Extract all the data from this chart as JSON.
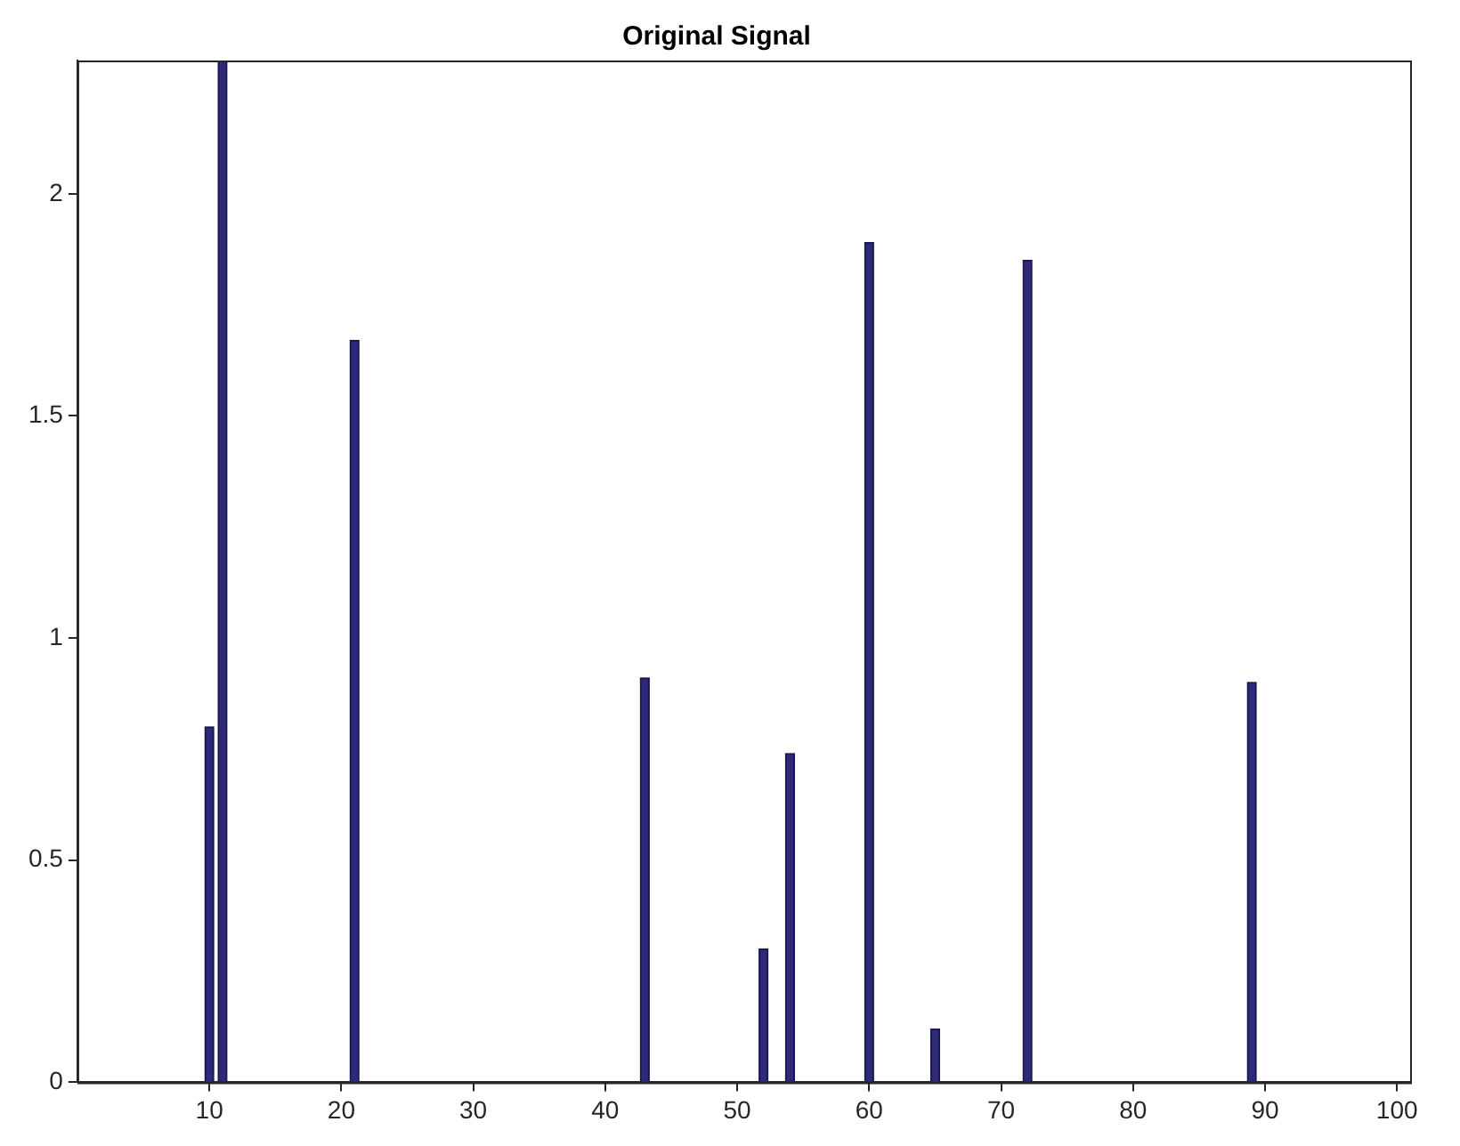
{
  "chart_data": {
    "type": "bar",
    "title": "Original Signal",
    "x": [
      10,
      11,
      21,
      43,
      52,
      54,
      60,
      65,
      72,
      89
    ],
    "values": [
      0.8,
      2.3,
      1.67,
      0.91,
      0.3,
      0.74,
      1.89,
      0.12,
      1.85,
      0.9
    ],
    "color": "#2e2a78",
    "xlim": [
      0,
      101
    ],
    "xticks": [
      10,
      20,
      30,
      40,
      50,
      60,
      70,
      80,
      90,
      100
    ],
    "ylim": [
      0,
      2.3
    ],
    "yticks": [
      0,
      0.5,
      1,
      1.5,
      2
    ],
    "grid": false,
    "legend": false
  }
}
